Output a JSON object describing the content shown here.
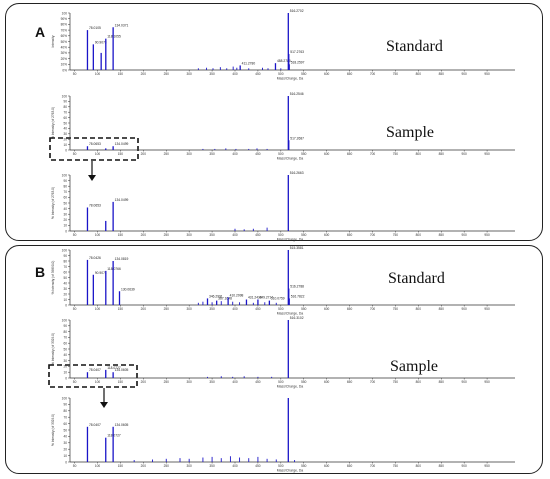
{
  "panels": [
    {
      "letter": "A",
      "labels": [
        "Standard",
        "Sample"
      ],
      "plots": [
        {
          "ylabel": "Intensity",
          "yticks": [
            "100",
            "90%",
            "80%",
            "70%",
            "60%",
            "50%",
            "40%",
            "30%",
            "20%",
            "10%",
            "0%"
          ],
          "peaks": [
            {
              "x": 90.9,
              "y": 45,
              "label": "90.9073"
            },
            {
              "x": 78.1,
              "y": 70,
              "label": "78.0105"
            },
            {
              "x": 108,
              "y": 30
            },
            {
              "x": 118.1,
              "y": 55,
              "label": "118.1055"
            },
            {
              "x": 134.1,
              "y": 75,
              "label": "134.0371"
            },
            {
              "x": 411.3,
              "y": 8,
              "label": "411.2780"
            },
            {
              "x": 488.3,
              "y": 12,
              "label": "488.2786"
            },
            {
              "x": 516.3,
              "y": 100,
              "label": "516.2702"
            },
            {
              "x": 517.3,
              "y": 28,
              "label": "517.2763"
            },
            {
              "x": 518.3,
              "y": 10,
              "label": "518.2597"
            }
          ],
          "noise": [
            {
              "x": 320,
              "y": 3
            },
            {
              "x": 338,
              "y": 4
            },
            {
              "x": 352,
              "y": 3
            },
            {
              "x": 368,
              "y": 5
            },
            {
              "x": 382,
              "y": 3
            },
            {
              "x": 396,
              "y": 6
            },
            {
              "x": 404,
              "y": 4
            },
            {
              "x": 430,
              "y": 3
            },
            {
              "x": 460,
              "y": 4
            },
            {
              "x": 472,
              "y": 3
            },
            {
              "x": 500,
              "y": 3
            }
          ]
        },
        {
          "ylabel": "% Intensity (of 2763.0)",
          "yticks": [
            "100",
            "90",
            "80",
            "70",
            "60",
            "50",
            "40",
            "30",
            "20",
            "10",
            "0"
          ],
          "peaks": [
            {
              "x": 78.1,
              "y": 7,
              "label": "78.0653"
            },
            {
              "x": 134.1,
              "y": 7,
              "label": "134.0499"
            },
            {
              "x": 118,
              "y": 3
            },
            {
              "x": 516.3,
              "y": 100,
              "label": "516.2546"
            },
            {
              "x": 517.3,
              "y": 18,
              "label": "517.2687"
            }
          ],
          "noise": [
            {
              "x": 330,
              "y": 2
            },
            {
              "x": 356,
              "y": 2
            },
            {
              "x": 380,
              "y": 3
            },
            {
              "x": 402,
              "y": 2
            },
            {
              "x": 430,
              "y": 2
            },
            {
              "x": 448,
              "y": 3
            },
            {
              "x": 470,
              "y": 2
            }
          ]
        },
        {
          "ylabel": "% Intensity (of 2763.0)",
          "yticks": [
            "100",
            "90",
            "80",
            "70",
            "60",
            "50",
            "40",
            "30",
            "20",
            "10",
            "0"
          ],
          "peaks": [
            {
              "x": 78.1,
              "y": 42,
              "label": "78.0653"
            },
            {
              "x": 118,
              "y": 18
            },
            {
              "x": 134.1,
              "y": 52,
              "label": "134.0499"
            },
            {
              "x": 516.3,
              "y": 100,
              "label": "516.2663"
            }
          ],
          "noise": [
            {
              "x": 400,
              "y": 4
            },
            {
              "x": 420,
              "y": 3
            },
            {
              "x": 440,
              "y": 4
            },
            {
              "x": 470,
              "y": 6
            }
          ]
        }
      ]
    },
    {
      "letter": "B",
      "labels": [
        "Standard",
        "Sample"
      ],
      "plots": [
        {
          "ylabel": "% Intensity (of 39890.0)",
          "yticks": [
            "100",
            "90",
            "80",
            "70",
            "60",
            "50",
            "40",
            "30",
            "20",
            "10",
            "0"
          ],
          "peaks": [
            {
              "x": 90.9,
              "y": 55,
              "label": "90.9071"
            },
            {
              "x": 78.1,
              "y": 82,
              "label": "78.0426"
            },
            {
              "x": 118.1,
              "y": 62,
              "label": "118.0766"
            },
            {
              "x": 134.1,
              "y": 80,
              "label": "134.0819"
            },
            {
              "x": 148,
              "y": 25,
              "label": "130.0639"
            },
            {
              "x": 340,
              "y": 12,
              "label": "346.2991"
            },
            {
              "x": 360,
              "y": 8,
              "label": "367.1648"
            },
            {
              "x": 385,
              "y": 14,
              "label": "410.2998"
            },
            {
              "x": 425,
              "y": 10,
              "label": "431.2433"
            },
            {
              "x": 450,
              "y": 10,
              "label": "449.2717"
            },
            {
              "x": 475,
              "y": 8,
              "label": "510.0759"
            },
            {
              "x": 516.3,
              "y": 100,
              "label": "515.3581"
            },
            {
              "x": 517.3,
              "y": 30,
              "label": "516.2788"
            },
            {
              "x": 518.3,
              "y": 12,
              "label": "516.7822"
            }
          ],
          "noise": [
            {
              "x": 320,
              "y": 4
            },
            {
              "x": 330,
              "y": 6
            },
            {
              "x": 350,
              "y": 5
            },
            {
              "x": 370,
              "y": 7
            },
            {
              "x": 395,
              "y": 6
            },
            {
              "x": 410,
              "y": 5
            },
            {
              "x": 440,
              "y": 4
            },
            {
              "x": 465,
              "y": 5
            },
            {
              "x": 490,
              "y": 4
            }
          ]
        },
        {
          "ylabel": "% Intensity (of 3329.0)",
          "yticks": [
            "100",
            "90",
            "80",
            "70",
            "60",
            "50",
            "40",
            "30",
            "20",
            "10",
            "0"
          ],
          "peaks": [
            {
              "x": 78.1,
              "y": 10,
              "label": "78.0407"
            },
            {
              "x": 118,
              "y": 14,
              "label": "118.0727"
            },
            {
              "x": 134.1,
              "y": 10,
              "label": "134.0605"
            },
            {
              "x": 516.3,
              "y": 100,
              "label": "516.3102"
            }
          ],
          "noise": [
            {
              "x": 340,
              "y": 2
            },
            {
              "x": 370,
              "y": 3
            },
            {
              "x": 395,
              "y": 2
            },
            {
              "x": 420,
              "y": 3
            },
            {
              "x": 450,
              "y": 2
            },
            {
              "x": 480,
              "y": 2
            }
          ]
        },
        {
          "ylabel": "% Intensity (of 3329.0)",
          "yticks": [
            "100",
            "90",
            "80",
            "70",
            "60",
            "50",
            "40",
            "30",
            "20",
            "10",
            "0"
          ],
          "peaks": [
            {
              "x": 78.1,
              "y": 55,
              "label": "78.0407"
            },
            {
              "x": 118,
              "y": 38,
              "label": "118.0727"
            },
            {
              "x": 134.1,
              "y": 55,
              "label": "134.0605"
            },
            {
              "x": 516.3,
              "y": 100
            }
          ],
          "noise": [
            {
              "x": 180,
              "y": 3
            },
            {
              "x": 220,
              "y": 4
            },
            {
              "x": 250,
              "y": 5
            },
            {
              "x": 280,
              "y": 6
            },
            {
              "x": 300,
              "y": 5
            },
            {
              "x": 330,
              "y": 7
            },
            {
              "x": 350,
              "y": 8
            },
            {
              "x": 370,
              "y": 6
            },
            {
              "x": 390,
              "y": 9
            },
            {
              "x": 410,
              "y": 7
            },
            {
              "x": 430,
              "y": 6
            },
            {
              "x": 450,
              "y": 8
            },
            {
              "x": 470,
              "y": 5
            },
            {
              "x": 490,
              "y": 4
            },
            {
              "x": 530,
              "y": 3
            }
          ]
        }
      ]
    }
  ],
  "xaxis": {
    "title": "Mass/Charge, Da",
    "xlim": [
      40,
      1000
    ],
    "ticks": [
      50,
      100,
      150,
      200,
      250,
      300,
      350,
      400,
      450,
      500,
      550,
      600,
      650,
      700,
      750,
      800,
      850,
      900,
      950
    ]
  },
  "colors": {
    "peak": "#1a14c8",
    "axis": "#333333",
    "box": "#222222"
  },
  "chart_data": [
    {
      "type": "bar",
      "title": "A - Standard",
      "xlabel": "Mass/Charge, Da",
      "ylabel": "Intensity",
      "x": [
        78.0105,
        90.9073,
        118.1055,
        134.0371,
        411.278,
        488.2786,
        516.2702,
        517.2763,
        518.2597
      ],
      "values": [
        70,
        45,
        55,
        75,
        8,
        12,
        100,
        28,
        10
      ],
      "ylim": [
        0,
        100
      ]
    },
    {
      "type": "bar",
      "title": "A - Sample",
      "xlabel": "Mass/Charge, Da",
      "ylabel": "% Intensity (of 2763.0)",
      "x": [
        78.0653,
        134.0499,
        516.2546,
        517.2687
      ],
      "values": [
        7,
        7,
        100,
        18
      ],
      "ylim": [
        0,
        100
      ]
    },
    {
      "type": "bar",
      "title": "B - Standard",
      "xlabel": "Mass/Charge, Da",
      "ylabel": "% Intensity (of 39890.0)",
      "x": [
        78.0426,
        90.9071,
        118.0766,
        134.0819,
        130.0639,
        346.2991,
        410.2998,
        431.2433,
        449.2717,
        510.0759,
        515.3581,
        516.2788
      ],
      "values": [
        82,
        55,
        62,
        80,
        25,
        12,
        14,
        10,
        10,
        8,
        100,
        30
      ],
      "ylim": [
        0,
        100
      ]
    },
    {
      "type": "bar",
      "title": "B - Sample",
      "xlabel": "Mass/Charge, Da",
      "ylabel": "% Intensity (of 3329.0)",
      "x": [
        78.0407,
        118.0727,
        134.0605,
        516.3102
      ],
      "values": [
        10,
        14,
        10,
        100
      ],
      "ylim": [
        0,
        100
      ]
    }
  ]
}
